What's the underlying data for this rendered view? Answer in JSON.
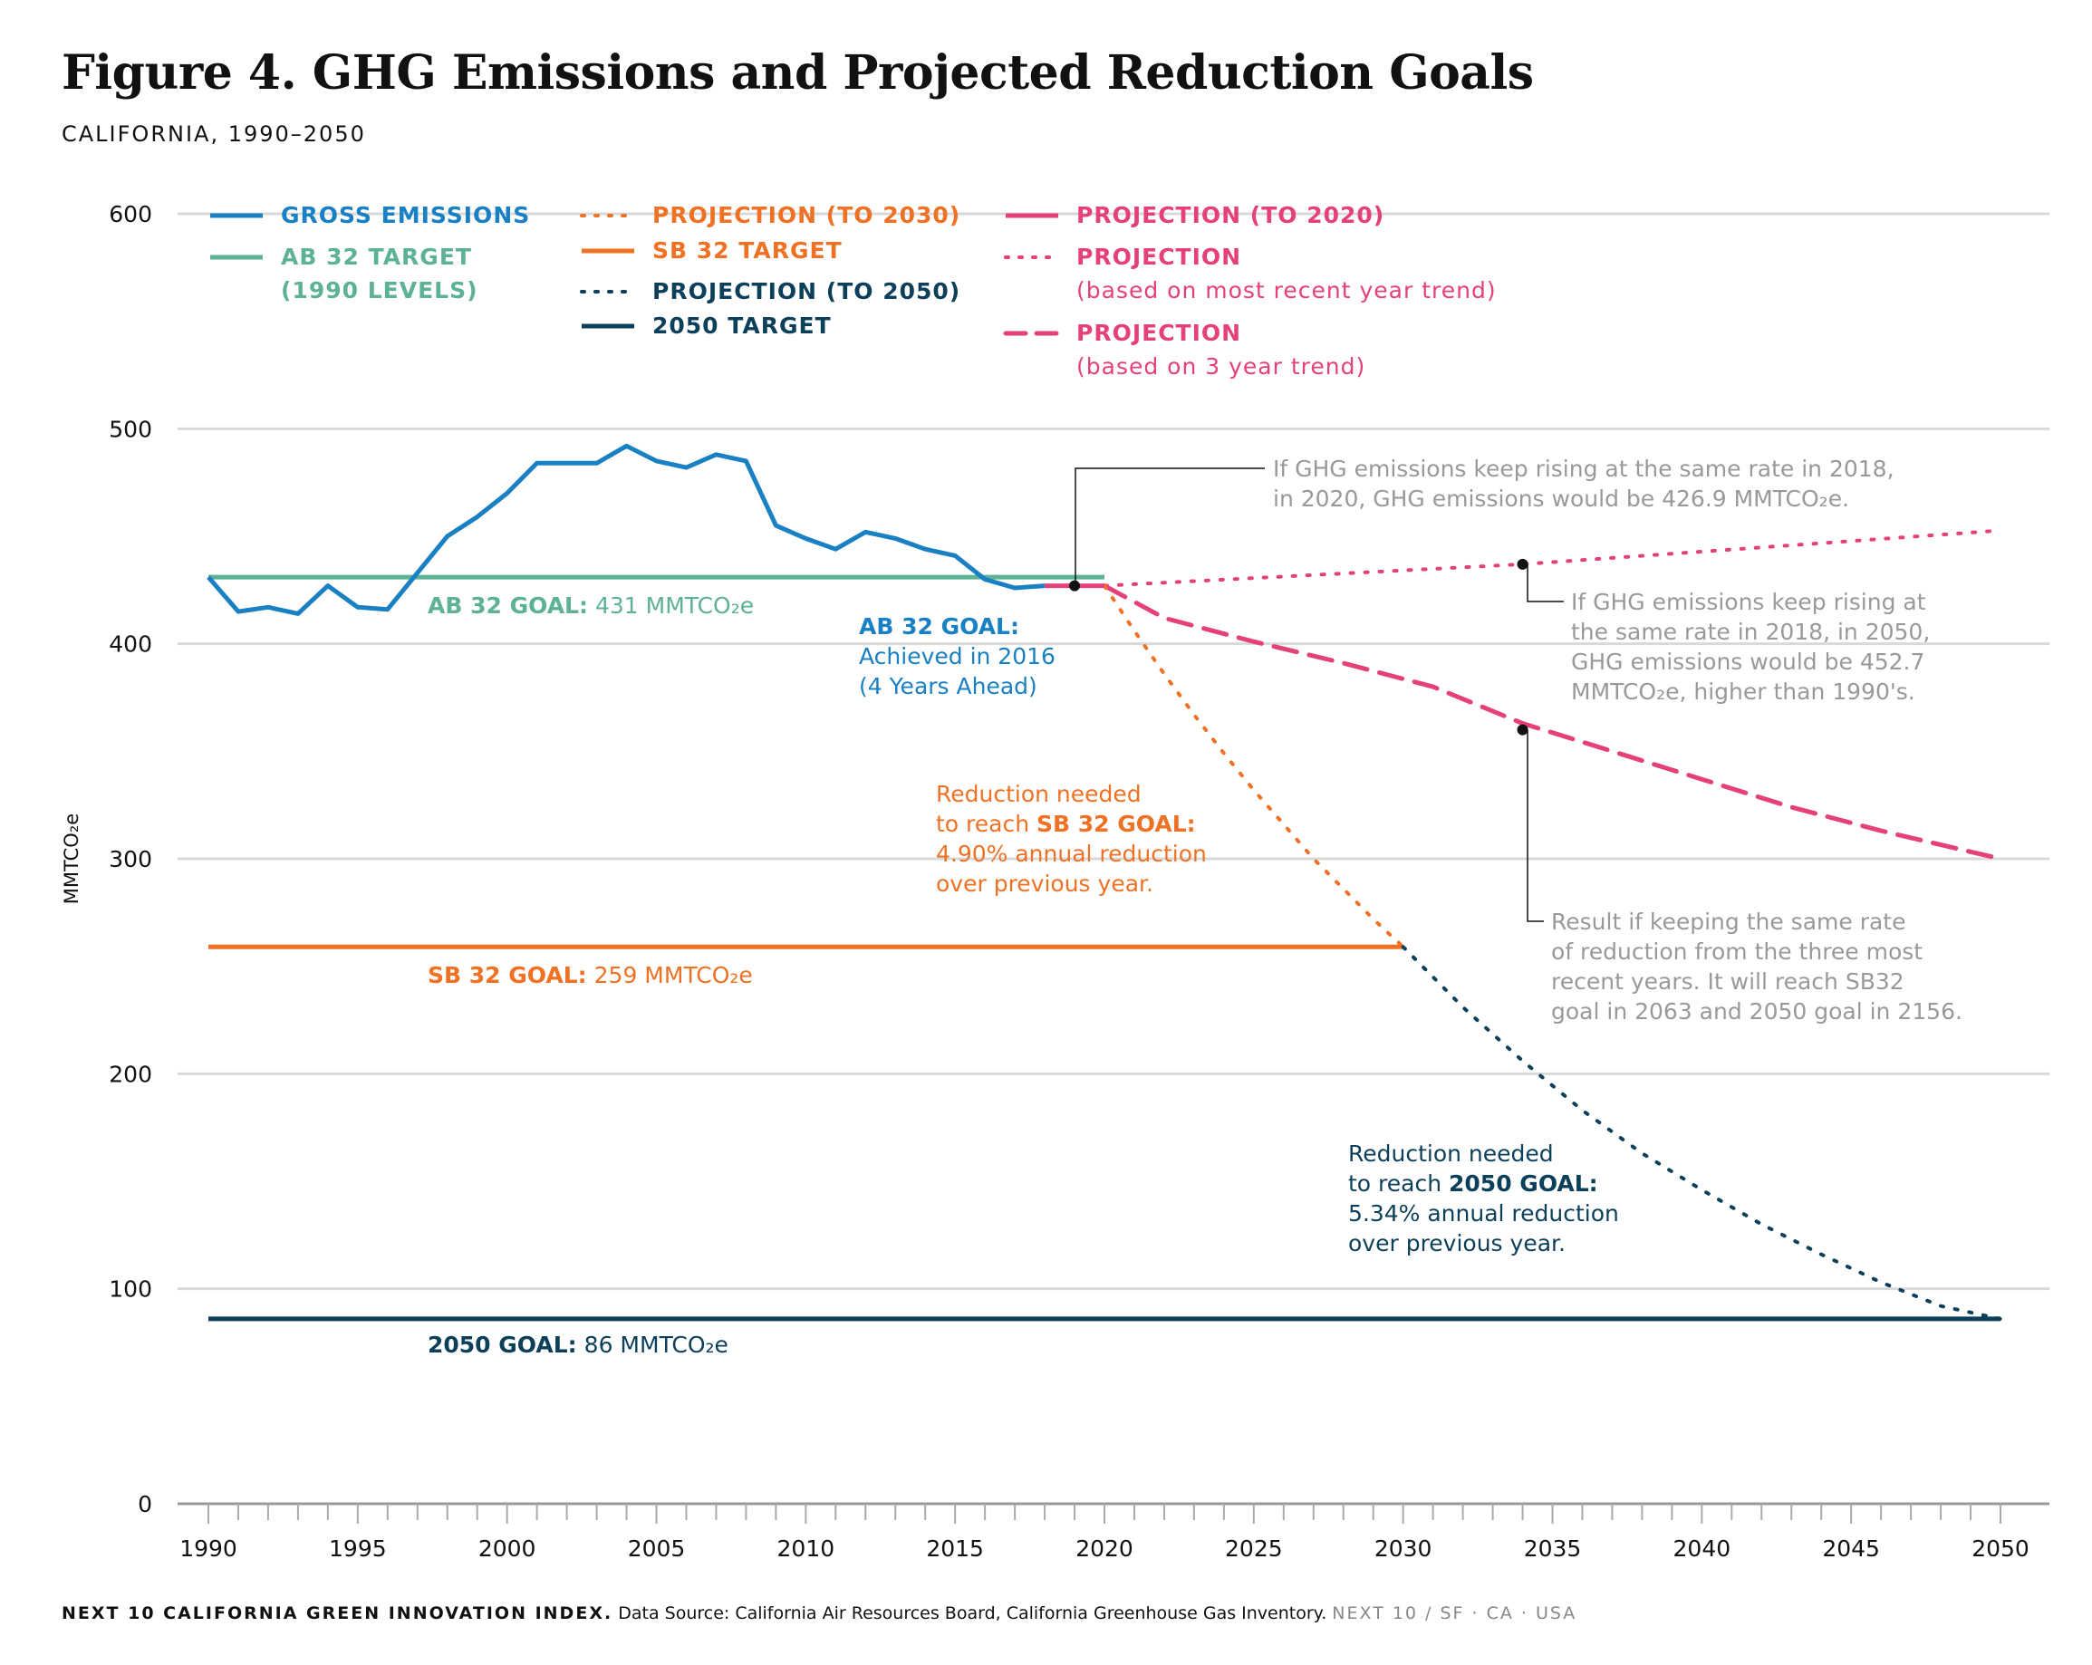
{
  "title": "Figure 4. GHG Emissions and Projected Reduction Goals",
  "subtitle": "CALIFORNIA, 1990–2050",
  "footer": {
    "brand": "NEXT 10 CALIFORNIA GREEN INNOVATION INDEX.",
    "source": "Data Source: California Air Resources Board, California Greenhouse Gas Inventory.",
    "org": "NEXT 10  /  SF · CA · USA"
  },
  "colors": {
    "gross": "#1a80c4",
    "ab32": "#5db294",
    "sb32": "#ef7124",
    "target2050": "#0c3f59",
    "pink": "#e5407a",
    "annotation": "#999999",
    "grid": "#d9d9d9"
  },
  "chart_data": {
    "type": "line",
    "ylabel": "MMTCO₂e",
    "xlim": [
      1990,
      2050
    ],
    "ylim": [
      0,
      600
    ],
    "x_ticks": [
      1990,
      1995,
      2000,
      2005,
      2010,
      2015,
      2020,
      2025,
      2030,
      2035,
      2040,
      2045,
      2050
    ],
    "y_ticks": [
      0,
      100,
      200,
      300,
      400,
      500,
      600
    ],
    "grid": true,
    "legend_position": "top-left",
    "legend": [
      {
        "label": "GROSS EMISSIONS",
        "color": "#1a80c4",
        "style": "solid"
      },
      {
        "label": "AB 32 TARGET",
        "label2": "(1990 LEVELS)",
        "color": "#5db294",
        "style": "solid"
      },
      {
        "label": "PROJECTION (TO 2030)",
        "color": "#ef7124",
        "style": "dotted"
      },
      {
        "label": "SB 32 TARGET",
        "color": "#ef7124",
        "style": "solid"
      },
      {
        "label": "PROJECTION (TO 2050)",
        "color": "#0c3f59",
        "style": "dotted"
      },
      {
        "label": "2050 TARGET",
        "color": "#0c3f59",
        "style": "solid"
      },
      {
        "label": "PROJECTION (TO 2020)",
        "color": "#e5407a",
        "style": "solid"
      },
      {
        "label": "PROJECTION",
        "label2": "(based on most recent year trend)",
        "color": "#e5407a",
        "style": "dotted"
      },
      {
        "label": "PROJECTION",
        "label2": "(based on 3 year trend)",
        "color": "#e5407a",
        "style": "dashed"
      }
    ],
    "series": [
      {
        "name": "GROSS EMISSIONS",
        "style": "solid",
        "color": "#1a80c4",
        "width": 5,
        "x": [
          1990,
          1991,
          1992,
          1993,
          1994,
          1995,
          1996,
          1997,
          1998,
          1999,
          2000,
          2001,
          2002,
          2003,
          2004,
          2005,
          2006,
          2007,
          2008,
          2009,
          2010,
          2011,
          2012,
          2013,
          2014,
          2015,
          2016,
          2017,
          2018
        ],
        "y": [
          431,
          415,
          417,
          414,
          427,
          417,
          416,
          433,
          450,
          459,
          470,
          484,
          484,
          484,
          492,
          485,
          482,
          488,
          485,
          455,
          449,
          444,
          452,
          449,
          444,
          441,
          430,
          426,
          427
        ]
      },
      {
        "name": "AB 32 TARGET",
        "style": "solid",
        "color": "#5db294",
        "width": 5,
        "x": [
          1990,
          2020
        ],
        "y": [
          431,
          431
        ]
      },
      {
        "name": "SB 32 TARGET",
        "style": "solid",
        "color": "#ef7124",
        "width": 5,
        "x": [
          1990,
          2030
        ],
        "y": [
          259,
          259
        ]
      },
      {
        "name": "2050 TARGET",
        "style": "solid",
        "color": "#0c3f59",
        "width": 5,
        "x": [
          1990,
          2050
        ],
        "y": [
          86,
          86
        ]
      },
      {
        "name": "PROJECTION (TO 2020)",
        "style": "solid",
        "color": "#e5407a",
        "width": 5,
        "x": [
          2018,
          2019,
          2020
        ],
        "y": [
          427,
          427,
          427
        ]
      },
      {
        "name": "PROJECTION (TO 2030)",
        "style": "dotted",
        "color": "#ef7124",
        "width": 4,
        "x": [
          2020,
          2021,
          2022,
          2023,
          2024,
          2025,
          2026,
          2027,
          2028,
          2029,
          2030
        ],
        "y": [
          427,
          406,
          386,
          367,
          349,
          332,
          316,
          300,
          286,
          272,
          259
        ]
      },
      {
        "name": "PROJECTION (TO 2050)",
        "style": "dotted",
        "color": "#0c3f59",
        "width": 4,
        "x": [
          2030,
          2032,
          2034,
          2036,
          2038,
          2040,
          2042,
          2044,
          2046,
          2048,
          2050
        ],
        "y": [
          259,
          231,
          206,
          183,
          163,
          146,
          130,
          116,
          103,
          92,
          86
        ]
      },
      {
        "name": "PROJECTION",
        "style": "dotted",
        "color": "#e5407a",
        "width": 4,
        "x": [
          2020,
          2034,
          2050
        ],
        "y": [
          427,
          437,
          452.7
        ]
      },
      {
        "name": "PROJECTION",
        "style": "dashed",
        "color": "#e5407a",
        "width": 5,
        "x": [
          2020,
          2022,
          2025,
          2028,
          2031,
          2034,
          2037,
          2040,
          2043,
          2046,
          2050
        ],
        "y": [
          427,
          412,
          401,
          391,
          380,
          363,
          350,
          337,
          324,
          313,
          300
        ]
      }
    ],
    "markers": [
      {
        "x": 2019,
        "y": 427
      },
      {
        "x": 2034,
        "y": 437
      },
      {
        "x": 2034,
        "y": 360
      }
    ],
    "labels": {
      "ab32_goal_bold": "AB 32 GOAL:",
      "ab32_goal_value": "431 MMTCO₂e",
      "sb32_goal_bold": "SB 32 GOAL:",
      "sb32_goal_value": "259 MMTCO₂e",
      "goal2050_bold": "2050 GOAL:",
      "goal2050_value": "86 MMTCO₂e",
      "ab32_achieved_1": "AB 32 GOAL:",
      "ab32_achieved_2": "Achieved in 2016",
      "ab32_achieved_3": "(4 Years Ahead)",
      "sb32_reduction_1": "Reduction needed",
      "sb32_reduction_2a": "to reach ",
      "sb32_reduction_2b": "SB 32 GOAL:",
      "sb32_reduction_3": "4.90% annual reduction",
      "sb32_reduction_4": "over previous year.",
      "g2050_reduction_1": "Reduction needed",
      "g2050_reduction_2a": "to reach ",
      "g2050_reduction_2b": "2050 GOAL:",
      "g2050_reduction_3": "5.34% annual reduction",
      "g2050_reduction_4": "over previous year.",
      "note_2020_1": "If GHG emissions keep rising at the same rate in 2018,",
      "note_2020_2": "in 2020, GHG emissions would be 426.9 MMTCO₂e.",
      "note_2050_1": "If GHG emissions keep rising at",
      "note_2050_2": "the same rate in 2018, in 2050,",
      "note_2050_3": "GHG emissions would be 452.7",
      "note_2050_4": "MMTCO₂e, higher than 1990's.",
      "note_3yr_1": "Result if keeping the same rate",
      "note_3yr_2": "of reduction from the three most",
      "note_3yr_3": "recent years. It will reach SB32",
      "note_3yr_4": "goal in 2063 and 2050 goal in 2156."
    }
  }
}
